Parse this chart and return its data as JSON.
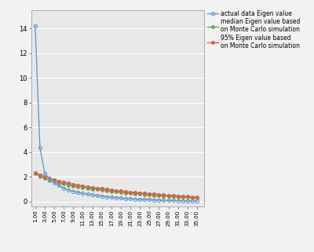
{
  "title": "",
  "legend_entries": [
    "actual data Eigen value",
    "median Eigen value based\non Monte Carlo simulation",
    "95% Eigen value based\non Monte Carlo simulation"
  ],
  "actual_data": [
    14.2,
    4.35,
    2.3,
    1.85,
    1.55,
    1.3,
    1.1,
    0.95,
    0.85,
    0.75,
    0.67,
    0.6,
    0.54,
    0.49,
    0.44,
    0.4,
    0.36,
    0.32,
    0.29,
    0.26,
    0.235,
    0.21,
    0.19,
    0.17,
    0.155,
    0.14,
    0.126,
    0.113,
    0.101,
    0.091,
    0.082,
    0.073,
    0.065,
    0.058,
    0.052
  ],
  "median_data": [
    2.25,
    2.05,
    1.88,
    1.74,
    1.63,
    1.53,
    1.44,
    1.36,
    1.28,
    1.22,
    1.16,
    1.1,
    1.04,
    0.99,
    0.94,
    0.89,
    0.84,
    0.8,
    0.76,
    0.72,
    0.68,
    0.65,
    0.62,
    0.59,
    0.56,
    0.53,
    0.5,
    0.47,
    0.445,
    0.42,
    0.395,
    0.37,
    0.345,
    0.32,
    0.3
  ],
  "pct95_data": [
    2.35,
    2.18,
    2.02,
    1.88,
    1.76,
    1.66,
    1.57,
    1.49,
    1.41,
    1.34,
    1.27,
    1.21,
    1.15,
    1.1,
    1.05,
    1.0,
    0.95,
    0.9,
    0.86,
    0.82,
    0.78,
    0.745,
    0.71,
    0.675,
    0.64,
    0.61,
    0.58,
    0.55,
    0.52,
    0.49,
    0.465,
    0.44,
    0.415,
    0.39,
    0.365
  ],
  "x_ticks": [
    1,
    3,
    5,
    7,
    9,
    11,
    13,
    15,
    17,
    19,
    21,
    23,
    25,
    27,
    29,
    31,
    33,
    35
  ],
  "x_tick_labels": [
    "1.00",
    "3.00",
    "5.00",
    "7.00",
    "9.00",
    "11.00",
    "13.00",
    "15.00",
    "17.00",
    "19.00",
    "21.00",
    "23.00",
    "25.00",
    "27.00",
    "29.00",
    "31.00",
    "33.00",
    "35.00"
  ],
  "ylim": [
    -0.4,
    15.5
  ],
  "y_ticks": [
    0,
    2,
    4,
    6,
    8,
    10,
    12,
    14
  ],
  "actual_color": "#6699CC",
  "median_color": "#66AA66",
  "pct95_color": "#CC6644",
  "plot_bg_color": "#E8E8E8",
  "fig_bg_color": "#F2F2F2",
  "marker_size": 3.0,
  "line_width": 1.0
}
